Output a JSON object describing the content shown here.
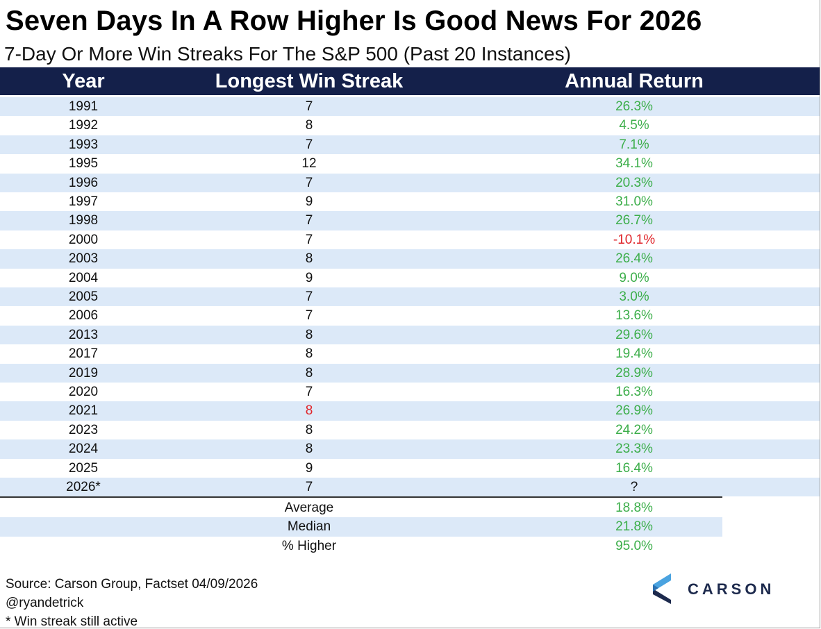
{
  "header": {
    "title": "Seven Days In A Row Higher Is Good News For 2026",
    "subtitle": "7-Day Or More Win Streaks For The S&P 500 (Past 20 Instances)"
  },
  "table": {
    "headers": [
      "Year",
      "Longest Win Streak",
      "Annual Return"
    ],
    "rows": [
      [
        "1991",
        "7",
        "26.3%"
      ],
      [
        "1992",
        "8",
        "4.5%"
      ],
      [
        "1993",
        "7",
        "7.1%"
      ],
      [
        "1995",
        "12",
        "34.1%"
      ],
      [
        "1996",
        "7",
        "20.3%"
      ],
      [
        "1997",
        "9",
        "31.0%"
      ],
      [
        "1998",
        "7",
        "26.7%"
      ],
      [
        "2000",
        "7",
        "-10.1%"
      ],
      [
        "2003",
        "8",
        "26.4%"
      ],
      [
        "2004",
        "9",
        "9.0%"
      ],
      [
        "2005",
        "7",
        "3.0%"
      ],
      [
        "2006",
        "7",
        "13.6%"
      ],
      [
        "2013",
        "8",
        "29.6%"
      ],
      [
        "2017",
        "8",
        "19.4%"
      ],
      [
        "2019",
        "8",
        "28.9%"
      ],
      [
        "2020",
        "7",
        "16.3%"
      ],
      [
        "2021",
        "8",
        "26.9%"
      ],
      [
        "2023",
        "8",
        "24.2%"
      ],
      [
        "2024",
        "8",
        "23.3%"
      ],
      [
        "2025",
        "9",
        "16.4%"
      ],
      [
        "2026*",
        "7",
        "?"
      ]
    ],
    "red_cells": [
      [
        7,
        2
      ],
      [
        16,
        1
      ]
    ],
    "summary": [
      [
        "Average",
        "18.8%"
      ],
      [
        "Median",
        "21.8%"
      ],
      [
        "% Higher",
        "95.0%"
      ]
    ]
  },
  "footer": [
    "Source: Carson Group, Factset 04/09/2026",
    "@ryandetrick",
    "* Win streak still active"
  ],
  "logo": {
    "text": "CARSON"
  }
}
